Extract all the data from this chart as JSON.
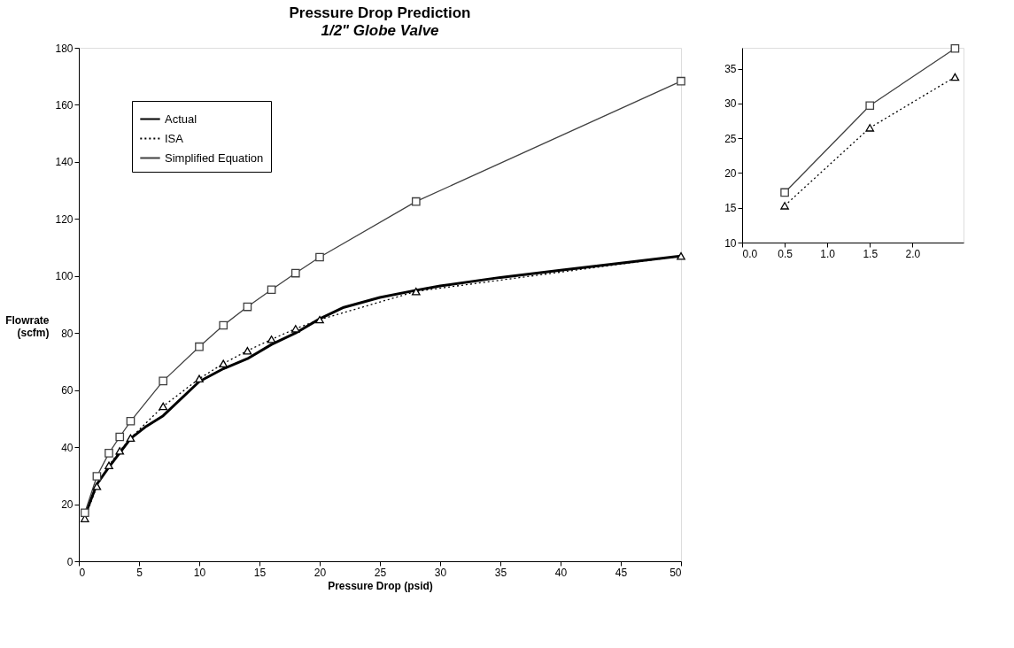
{
  "chart_data": [
    {
      "type": "line",
      "title": "Pressure Drop Prediction",
      "subtitle": "1/2\" Globe Valve",
      "xlabel": "Pressure Drop (psid)",
      "ylabel": "Flowrate (scfm)",
      "xlim": [
        0,
        50
      ],
      "xticks": [
        0,
        5,
        10,
        15,
        20,
        25,
        30,
        35,
        40,
        45,
        50
      ],
      "ylim": [
        0,
        180
      ],
      "yticks": [
        0,
        20,
        40,
        60,
        80,
        100,
        120,
        140,
        160,
        180
      ],
      "grid": false,
      "legend": "top left",
      "series": [
        {
          "name": "Actual",
          "color": "#000000",
          "marker": "none",
          "line_style": "solid",
          "x": [
            0.5,
            1.5,
            2.5,
            4.3,
            5.5,
            7,
            10,
            12,
            14,
            16,
            18,
            20,
            22,
            25,
            28,
            30,
            35,
            40,
            45,
            50
          ],
          "values": [
            16,
            27,
            33,
            43,
            47,
            51,
            63,
            67.5,
            71,
            76,
            80,
            85,
            89,
            92.5,
            95,
            96.5,
            99.5,
            102,
            104.5,
            107
          ]
        },
        {
          "name": "ISA",
          "color": "#000000",
          "marker": "triangle",
          "line_style": "dotted",
          "x": [
            0.5,
            1.5,
            2.5,
            3.4,
            4.3,
            7,
            10,
            12,
            14,
            16,
            18,
            20,
            28,
            50
          ],
          "values": [
            15,
            26.3,
            33.6,
            38.7,
            43.2,
            54.3,
            64,
            69.3,
            73.8,
            77.8,
            81.5,
            84.7,
            94.6,
            107
          ]
        },
        {
          "name": "Simplified Equation",
          "color": "#404040",
          "marker": "square",
          "line_style": "solid",
          "x": [
            0.5,
            1.5,
            2.5,
            3.4,
            4.3,
            7,
            10,
            12,
            14,
            16,
            18,
            20,
            28,
            50
          ],
          "values": [
            17,
            29.8,
            37.9,
            43.6,
            49.1,
            63.2,
            75.2,
            82.7,
            89.2,
            95.2,
            101,
            106.6,
            126.1,
            168.3
          ]
        }
      ]
    },
    {
      "type": "line",
      "xlim": [
        0,
        2.6
      ],
      "xticks": [
        {
          "value": 0,
          "label": "0.0"
        },
        {
          "value": 0.5,
          "label": "0.5"
        },
        {
          "value": 1,
          "label": "1.0"
        },
        {
          "value": 1.5,
          "label": "1.5"
        },
        {
          "value": 2,
          "label": "2.0"
        }
      ],
      "ylim": [
        10,
        38
      ],
      "yticks": [
        10,
        15,
        20,
        25,
        30,
        35
      ],
      "grid": false,
      "series": [
        {
          "color": "#000000",
          "marker": "triangle",
          "line_style": "dotted",
          "x": [
            0.5,
            1.5,
            2.5
          ],
          "values": [
            15.3,
            26.5,
            33.8
          ]
        },
        {
          "color": "#404040",
          "marker": "square",
          "line_style": "solid",
          "x": [
            0.5,
            1.5,
            2.5
          ],
          "values": [
            17.2,
            29.7,
            37.9
          ]
        }
      ]
    }
  ]
}
